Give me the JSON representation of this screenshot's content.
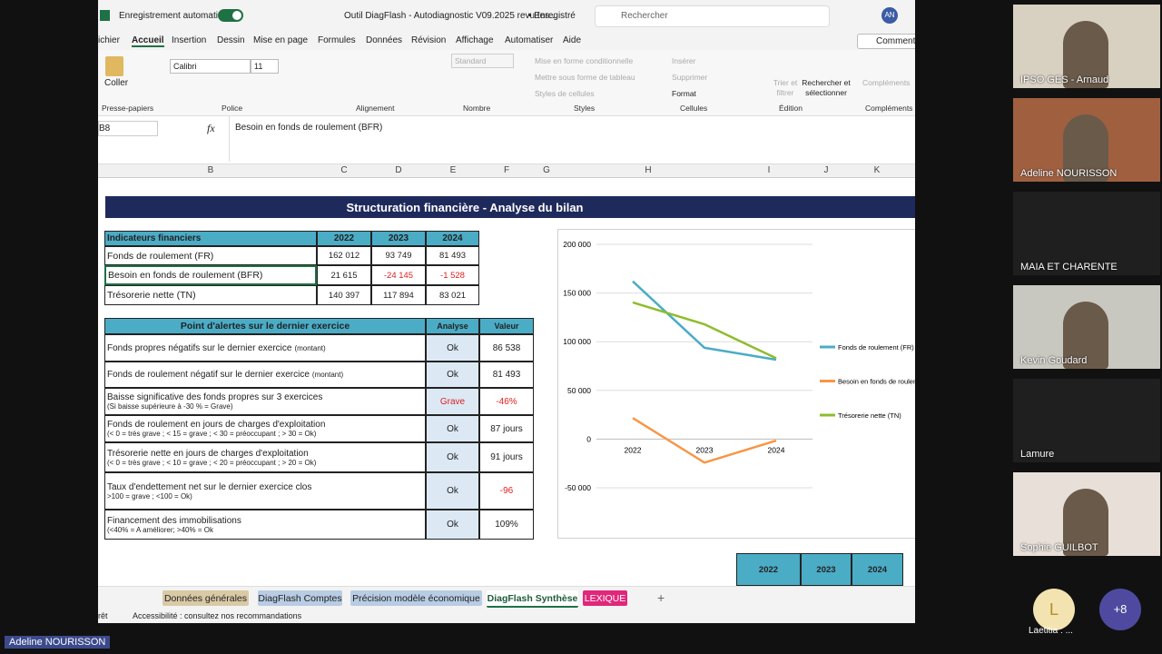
{
  "titlebar": {
    "autosave": "Enregistrement automatique",
    "filename": "Outil DiagFlash - Autodiagnostic V09.2025 revu tes...",
    "saved": "• Enregistré",
    "search": "Rechercher",
    "avatar": "AN"
  },
  "menu": [
    "ichier",
    "Accueil",
    "Insertion",
    "Dessin",
    "Mise en page",
    "Formules",
    "Données",
    "Révision",
    "Affichage",
    "Automatiser",
    "Aide"
  ],
  "comments": "Commentair",
  "ribbon": {
    "paste": "Coller",
    "font": "Calibri",
    "size": "11",
    "number_format": "Standard",
    "cond_format": "Mise en forme conditionnelle",
    "as_table": "Mettre sous forme de tableau",
    "cell_styles": "Styles de cellules",
    "insert": "Insérer",
    "delete": "Supprimer",
    "format": "Format",
    "sort": "Trier et filtrer",
    "find": "Rechercher et sélectionner",
    "addins": "Compléments",
    "groups": [
      "Presse-papiers",
      "Police",
      "Alignement",
      "Nombre",
      "Styles",
      "Cellules",
      "Édition",
      "Compléments"
    ]
  },
  "formula_bar": {
    "cell": "B8",
    "fx": "fx",
    "content": "Besoin en fonds de roulement (BFR)"
  },
  "columns": [
    "B",
    "C",
    "D",
    "E",
    "F",
    "G",
    "H",
    "I",
    "J",
    "K"
  ],
  "sheet": {
    "title": "Structuration financière - Analyse du bilan",
    "indicators": {
      "header": [
        "Indicateurs financiers",
        "2022",
        "2023",
        "2024"
      ],
      "rows": [
        [
          "Fonds de roulement (FR)",
          "162 012",
          "93 749",
          "81 493"
        ],
        [
          "Besoin en fonds de roulement (BFR)",
          "21 615",
          "-24 145",
          "-1 528"
        ],
        [
          "Trésorerie nette (TN)",
          "140 397",
          "117 894",
          "83 021"
        ]
      ]
    },
    "alerts": {
      "header": [
        "Point d'alertes sur le dernier exercice",
        "Analyse",
        "Valeur"
      ],
      "rows": [
        {
          "label": "Fonds propres négatifs sur le dernier exercice",
          "note": "(montant)",
          "analysis": "Ok",
          "value": "86 538"
        },
        {
          "label": "Fonds de roulement négatif sur le dernier exercice",
          "note": "(montant)",
          "analysis": "Ok",
          "value": "81 493"
        },
        {
          "label": "Baisse significative des fonds propres sur 3 exercices",
          "note": "(Si baisse supérieure à -30 % = Grave)",
          "analysis": "Grave",
          "value": "-46%"
        },
        {
          "label": "Fonds de roulement en jours de charges d'exploitation",
          "note": "(< 0 = très grave ; < 15 = grave ; < 30 = préoccupant ; > 30 = Ok)",
          "analysis": "Ok",
          "value": "87 jours"
        },
        {
          "label": "Trésorerie nette en jours de charges d'exploitation",
          "note": "(< 0 = très grave ; < 10 = grave ; < 20 = préoccupant ; > 20 = Ok)",
          "analysis": "Ok",
          "value": "91 jours"
        },
        {
          "label": "Taux d'endettement net sur le dernier exercice clos",
          "note": ">100 =  grave ; <100 = Ok)",
          "analysis": "Ok",
          "value": "-96"
        },
        {
          "label": "Financement des immobilisations",
          "note": "(<40% = A améliorer; >40% = Ok",
          "analysis": "Ok",
          "value": "109%"
        }
      ]
    },
    "chart": {
      "type": "line",
      "categories": [
        "2022",
        "2023",
        "2024"
      ],
      "ylim": [
        -50000,
        200000
      ],
      "yticks": [
        {
          "value": 200000,
          "label": "200 000"
        },
        {
          "value": 150000,
          "label": "150 000"
        },
        {
          "value": 100000,
          "label": "100 000"
        },
        {
          "value": 50000,
          "label": "50 000"
        },
        0,
        {
          "value": -50000,
          "label": "-50 000"
        }
      ],
      "series": [
        {
          "name": "Fonds de roulement (FR)",
          "color": "#4bacc6",
          "values": [
            162012,
            93749,
            81493
          ]
        },
        {
          "name": "Besoin en fonds de roulement",
          "color": "#f79646",
          "values": [
            21615,
            -24145,
            -1528
          ]
        },
        {
          "name": "Trésorerie nette (TN)",
          "color": "#8fbc2d",
          "values": [
            140397,
            117894,
            83021
          ]
        }
      ]
    },
    "table3_header": [
      "2022",
      "2023",
      "2024"
    ]
  },
  "tabs": [
    "Données générales",
    "DiagFlash Comptes",
    "Précision modèle économique",
    "DiagFlash Synthèse",
    "LEXIQUE"
  ],
  "status": {
    "ready": "rêt",
    "accessibility": "Accessibilité : consultez nos recommandations"
  },
  "participants": [
    "IPSO GES - Arnaud",
    "Adeline NOURISSON",
    "MAIA ET CHARENTE",
    "Kevin Goudard",
    "Lamure",
    "Sophie GUILBOT"
  ],
  "extra": {
    "initial": "L",
    "name": "Laetitia : ...",
    "more": "+8"
  },
  "speaker": "Adeline NOURISSON"
}
